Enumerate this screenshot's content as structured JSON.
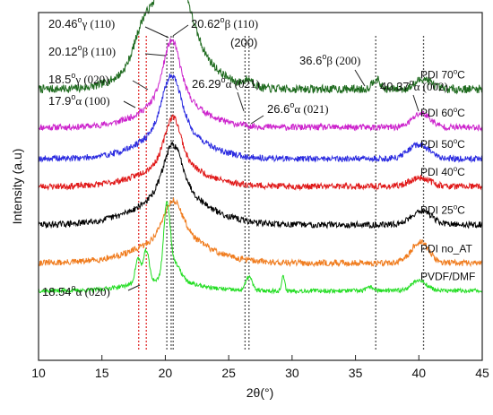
{
  "chart_data": {
    "type": "line",
    "title": "",
    "xlabel": "2θ(°)",
    "ylabel": "Intensity (a.u)",
    "xlim": [
      10,
      45
    ],
    "xticks": [
      10,
      15,
      20,
      25,
      30,
      35,
      40,
      45
    ],
    "xtick_labels": [
      "10",
      "15",
      "20",
      "25",
      "30",
      "35",
      "40",
      "45"
    ],
    "grid": false,
    "legend": "labels on right end of each curve",
    "series": [
      {
        "name": "PDI 70°C",
        "label_base": "PDI 70",
        "label_sup": "o",
        "label_tail": "C",
        "color": "#1f6b1f",
        "baseline": 0.78,
        "peaks": [
          [
            17.9,
            0.04,
            0.6
          ],
          [
            18.5,
            0.05,
            0.6
          ],
          [
            20.46,
            0.38,
            0.5
          ],
          [
            20.62,
            0.2,
            1.2
          ],
          [
            26.6,
            0.02,
            0.4
          ],
          [
            36.6,
            0.03,
            0.3
          ],
          [
            40.37,
            0.03,
            0.6
          ]
        ],
        "amorphous": [
          [
            20.5,
            0.14,
            2.6
          ]
        ],
        "noise": 0.012,
        "seed": 7
      },
      {
        "name": "PDI 60°C",
        "label_base": "PDI 60",
        "label_sup": "o",
        "label_tail": "C",
        "color": "#cc22cc",
        "baseline": 0.67,
        "peaks": [
          [
            20.5,
            0.14,
            0.6
          ],
          [
            20.6,
            0.06,
            1.4
          ],
          [
            40.2,
            0.04,
            0.7
          ]
        ],
        "amorphous": [
          [
            20.5,
            0.05,
            2.8
          ]
        ],
        "noise": 0.009,
        "seed": 11
      },
      {
        "name": "PDI 50°C",
        "label_base": "PDI 50",
        "label_sup": "o",
        "label_tail": "C",
        "color": "#2a2ae0",
        "baseline": 0.58,
        "peaks": [
          [
            20.5,
            0.14,
            0.7
          ],
          [
            20.6,
            0.05,
            1.6
          ],
          [
            40.0,
            0.04,
            0.8
          ]
        ],
        "amorphous": [
          [
            20.5,
            0.05,
            2.9
          ]
        ],
        "noise": 0.009,
        "seed": 19
      },
      {
        "name": "PDI 40°C",
        "label_base": "PDI 40",
        "label_sup": "o",
        "label_tail": "C",
        "color": "#e01818",
        "baseline": 0.5,
        "peaks": [
          [
            20.6,
            0.12,
            0.6
          ],
          [
            20.6,
            0.04,
            1.5
          ],
          [
            40.1,
            0.025,
            0.8
          ]
        ],
        "amorphous": [
          [
            20.5,
            0.04,
            3.0
          ]
        ],
        "noise": 0.009,
        "seed": 23
      },
      {
        "name": "PDI 25°C",
        "label_base": "PDI 25",
        "label_sup": "o",
        "label_tail": "C",
        "color": "#000000",
        "baseline": 0.39,
        "peaks": [
          [
            20.6,
            0.12,
            0.7
          ],
          [
            20.8,
            0.05,
            1.6
          ],
          [
            40.2,
            0.04,
            0.8
          ]
        ],
        "amorphous": [
          [
            20.5,
            0.06,
            3.2
          ]
        ],
        "noise": 0.009,
        "seed": 29
      },
      {
        "name": "PDI no_AT",
        "label_base": "PDI no_AT",
        "label_sup": "",
        "label_tail": "",
        "color": "#f07c1e",
        "baseline": 0.28,
        "peaks": [
          [
            20.6,
            0.09,
            0.7
          ],
          [
            20.9,
            0.04,
            1.6
          ],
          [
            40.1,
            0.06,
            0.7
          ]
        ],
        "amorphous": [
          [
            20.5,
            0.05,
            3.2
          ]
        ],
        "noise": 0.009,
        "seed": 31
      },
      {
        "name": "PVDF/DMF",
        "label_base": "PVDF/DMF",
        "label_sup": "",
        "label_tail": "",
        "color": "#22dd22",
        "baseline": 0.2,
        "peaks": [
          [
            17.85,
            0.07,
            0.22
          ],
          [
            18.5,
            0.09,
            0.22
          ],
          [
            20.12,
            0.2,
            0.25
          ],
          [
            20.7,
            0.05,
            0.5
          ],
          [
            26.6,
            0.04,
            0.25
          ],
          [
            29.3,
            0.04,
            0.12
          ],
          [
            36.2,
            0.01,
            0.3
          ],
          [
            40.0,
            0.03,
            0.6
          ]
        ],
        "amorphous": [
          [
            19.8,
            0.03,
            2.5
          ]
        ],
        "noise": 0.006,
        "seed": 37
      }
    ],
    "reference_lines": [
      {
        "x": 17.9,
        "color": "#e23030"
      },
      {
        "x": 18.5,
        "color": "#e23030"
      },
      {
        "x": 20.12,
        "color": "#555555"
      },
      {
        "x": 20.46,
        "color": "#555555"
      },
      {
        "x": 20.62,
        "color": "#555555"
      },
      {
        "x": 26.29,
        "color": "#555555"
      },
      {
        "x": 26.6,
        "color": "#555555"
      },
      {
        "x": 36.6,
        "color": "#555555"
      },
      {
        "x": 40.37,
        "color": "#555555"
      }
    ],
    "annotations": [
      {
        "id": "g110",
        "val": "20.46",
        "sup": "o",
        "rest": "γ (110)"
      },
      {
        "id": "b110",
        "val": "20.62",
        "sup": "o",
        "rest": "β (110)"
      },
      {
        "id": "p200",
        "val": "",
        "sup": "",
        "rest": "(200)"
      },
      {
        "id": "b110b",
        "val": "20.12",
        "sup": "o",
        "rest": "β (110)"
      },
      {
        "id": "g020",
        "val": "18.5",
        "sup": "o",
        "rest": "γ (020)"
      },
      {
        "id": "a100",
        "val": "17.9",
        "sup": "o",
        "rest": "α (100)"
      },
      {
        "id": "a021a",
        "val": "26.29",
        "sup": "o",
        "rest": "α (021)"
      },
      {
        "id": "a021b",
        "val": "26.6",
        "sup": "o",
        "rest": "α (021)"
      },
      {
        "id": "b200",
        "val": "36.6",
        "sup": "o",
        "rest": "β (200)"
      },
      {
        "id": "a002",
        "val": "40.37",
        "sup": "o",
        "rest": "α (002)"
      },
      {
        "id": "a020",
        "val": "18.54",
        "sup": "o",
        "rest": "α (020)"
      }
    ]
  }
}
